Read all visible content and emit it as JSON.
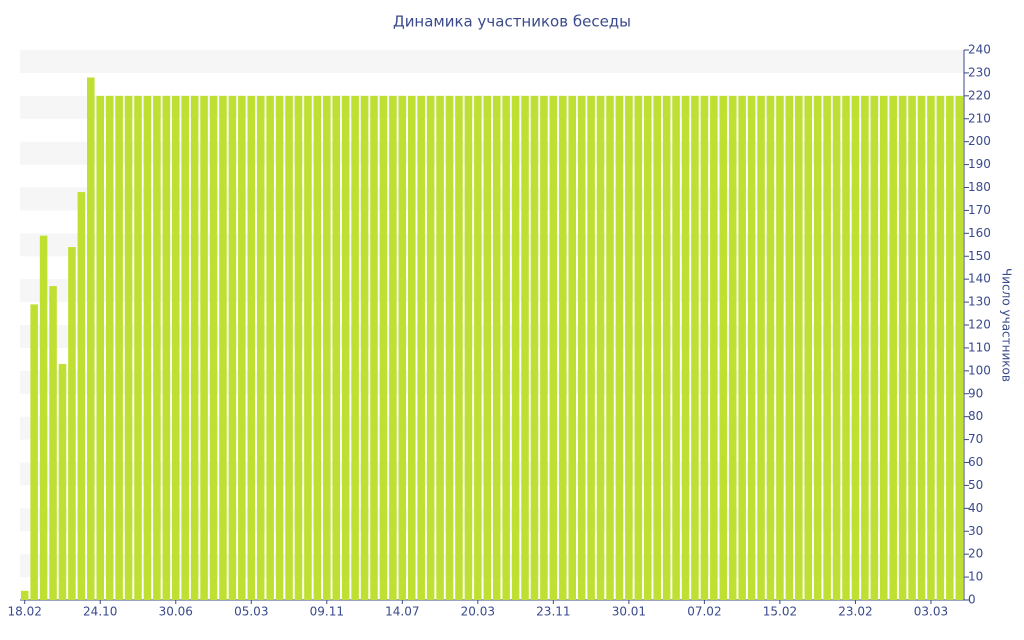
{
  "chart_data": {
    "type": "bar",
    "title": "Динамика участников беседы",
    "y_label": "Число участников",
    "categories": [
      "18.02",
      null,
      null,
      null,
      null,
      null,
      null,
      null,
      "24.10",
      null,
      null,
      null,
      null,
      null,
      null,
      null,
      "30.06",
      null,
      null,
      null,
      null,
      null,
      null,
      null,
      "05.03",
      null,
      null,
      null,
      null,
      null,
      null,
      null,
      "09.11",
      null,
      null,
      null,
      null,
      null,
      null,
      null,
      "14.07",
      null,
      null,
      null,
      null,
      null,
      null,
      null,
      "20.03",
      null,
      null,
      null,
      null,
      null,
      null,
      null,
      "23.11",
      null,
      null,
      null,
      null,
      null,
      null,
      null,
      "30.01",
      null,
      null,
      null,
      null,
      null,
      null,
      null,
      "07.02",
      null,
      null,
      null,
      null,
      null,
      null,
      null,
      "15.02",
      null,
      null,
      null,
      null,
      null,
      null,
      null,
      "23.02",
      null,
      null,
      null,
      null,
      null,
      null,
      null,
      "03.03",
      null,
      null,
      null
    ],
    "values": [
      4,
      129,
      159,
      137,
      103,
      154,
      178,
      228,
      220,
      220,
      220,
      220,
      220,
      220,
      220,
      220,
      220,
      220,
      220,
      220,
      220,
      220,
      220,
      220,
      220,
      220,
      220,
      220,
      220,
      220,
      220,
      220,
      220,
      220,
      220,
      220,
      220,
      220,
      220,
      220,
      220,
      220,
      220,
      220,
      220,
      220,
      220,
      220,
      220,
      220,
      220,
      220,
      220,
      220,
      220,
      220,
      220,
      220,
      220,
      220,
      220,
      220,
      220,
      220,
      220,
      220,
      220,
      220,
      220,
      220,
      220,
      220,
      220,
      220,
      220,
      220,
      220,
      220,
      220,
      220,
      220,
      220,
      220,
      220,
      220,
      220,
      220,
      220,
      220,
      220,
      220,
      220,
      220,
      220,
      220,
      220,
      220,
      220,
      220,
      220
    ],
    "color": "#bfe032",
    "ylim": [
      0,
      240
    ],
    "yticks": [
      0,
      10,
      20,
      30,
      40,
      50,
      60,
      70,
      80,
      90,
      100,
      110,
      120,
      130,
      140,
      150,
      160,
      170,
      180,
      190,
      200,
      210,
      220,
      230,
      240
    ],
    "grid": true
  }
}
